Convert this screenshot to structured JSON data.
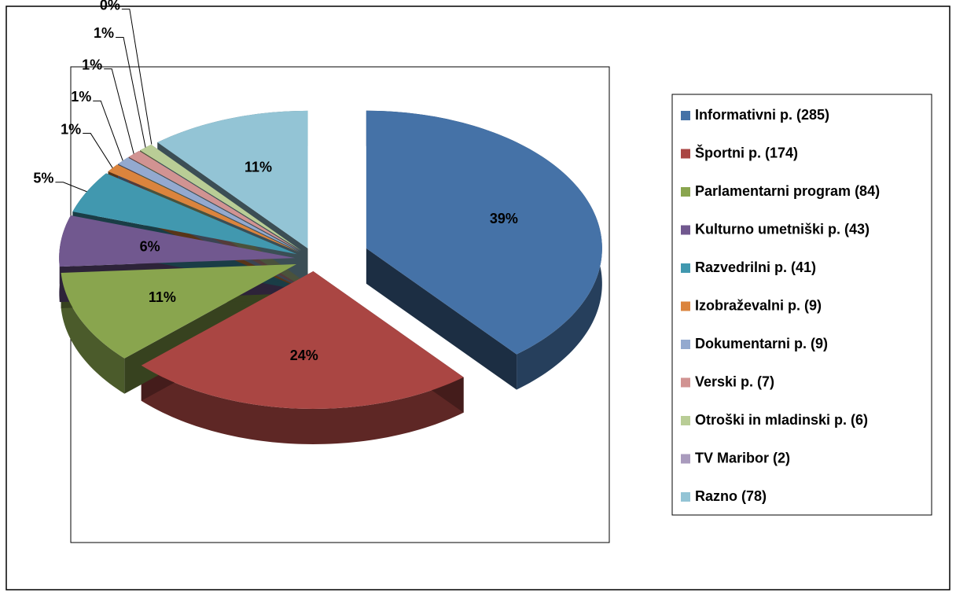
{
  "chart_data": {
    "type": "pie",
    "categories": [
      "Informativni p. (285)",
      "Športni p. (174)",
      "Parlamentarni program (84)",
      "Kulturno umetniški p. (43)",
      "Razvedrilni p. (41)",
      "Izobraževalni p. (9)",
      "Dokumentarni p. (9)",
      "Verski p. (7)",
      "Otroški in mladinski p. (6)",
      "TV Maribor (2)",
      "Razno (78)"
    ],
    "values": [
      39,
      24,
      11,
      6,
      5,
      1,
      1,
      1,
      1,
      0,
      11
    ],
    "value_labels": [
      "39%",
      "24%",
      "11%",
      "6%",
      "5%",
      "1%",
      "1%",
      "1%",
      "1%",
      "0%",
      "11%"
    ],
    "colors": [
      "#4572a7",
      "#aa4643",
      "#89a54e",
      "#71588f",
      "#4198af",
      "#db843d",
      "#93a9cf",
      "#d19392",
      "#b9cd96",
      "#a99bbd",
      "#93c4d5"
    ],
    "legend": "right"
  }
}
